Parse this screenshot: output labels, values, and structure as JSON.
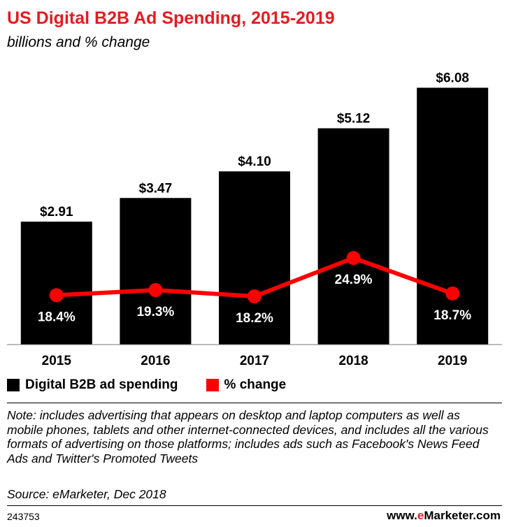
{
  "chart_data": {
    "type": "bar",
    "title": "US Digital B2B Ad Spending, 2015-2019",
    "subtitle": "billions and % change",
    "categories": [
      "2015",
      "2016",
      "2017",
      "2018",
      "2019"
    ],
    "series": [
      {
        "name": "Digital B2B ad spending",
        "type": "bar",
        "values": [
          2.91,
          3.47,
          4.1,
          5.12,
          6.08
        ],
        "labels": [
          "$2.91",
          "$3.47",
          "$4.10",
          "$5.12",
          "$6.08"
        ],
        "color": "#000000"
      },
      {
        "name": "% change",
        "type": "line",
        "values": [
          18.4,
          19.3,
          18.2,
          24.9,
          18.7
        ],
        "labels": [
          "18.4%",
          "19.3%",
          "18.2%",
          "24.9%",
          "18.7%"
        ],
        "color": "#ff0000"
      }
    ],
    "ylim": [
      0,
      6.8
    ],
    "xlabel": "",
    "ylabel": ""
  },
  "legend": {
    "spending": "Digital B2B ad spending",
    "change": "% change"
  },
  "footer": {
    "note": "Note: includes advertising that appears on desktop and laptop computers as well as mobile phones, tablets and other internet-connected devices, and includes all the various formats of advertising on those platforms; includes ads such as Facebook's News Feed Ads and Twitter's Promoted Tweets",
    "source": "Source: eMarketer, Dec 2018",
    "chart_id": "243753",
    "brand_prefix": "www.",
    "brand_e": "e",
    "brand_rest": "Marketer.com"
  },
  "colors": {
    "accent": "#e31b23",
    "bar": "#000000",
    "line": "#ff0000"
  }
}
